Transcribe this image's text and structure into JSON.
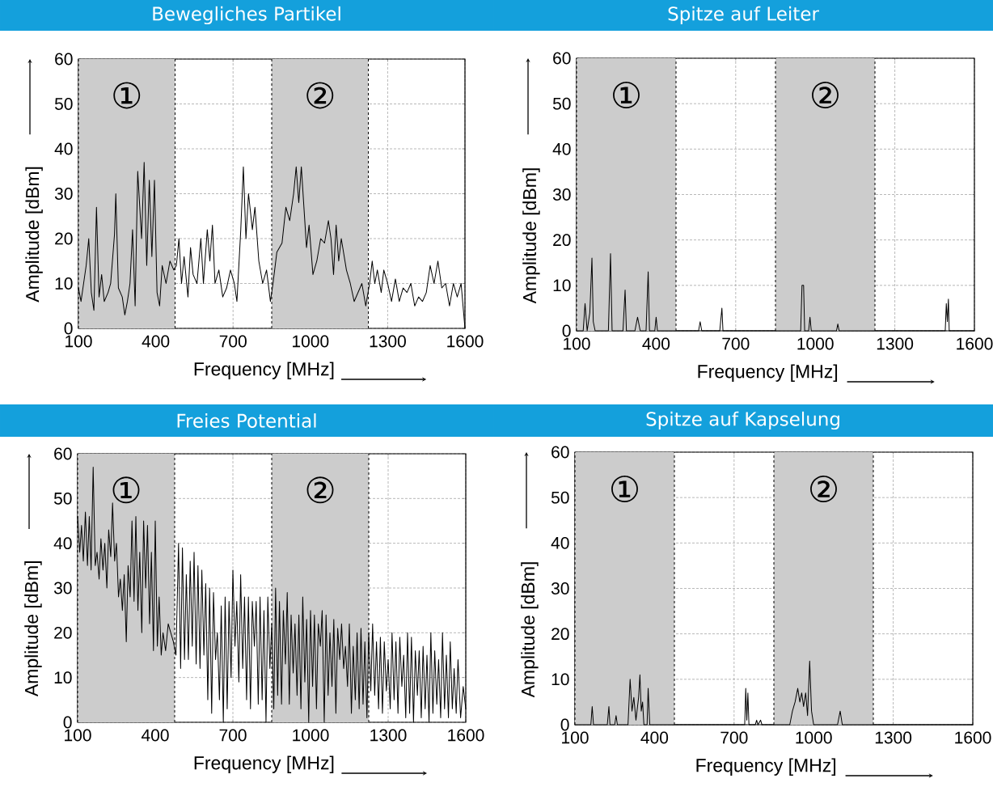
{
  "chart_data": [
    {
      "type": "line",
      "title": "Bewegliches Partikel",
      "xlabel": "Frequency [MHz]",
      "ylabel": "Amplitude [dBm]",
      "xlim": [
        100,
        1600
      ],
      "ylim": [
        0,
        60
      ],
      "xticks": [
        100,
        400,
        700,
        1000,
        1300,
        1600
      ],
      "yticks": [
        0,
        10,
        20,
        30,
        40,
        50,
        60
      ],
      "grid": true,
      "color": "#000000",
      "bands": [
        {
          "axis": "x",
          "from": 100,
          "to": 475,
          "label": "①",
          "color": "#cccccc"
        },
        {
          "axis": "x",
          "from": 850,
          "to": 1225,
          "label": "②",
          "color": "#cccccc"
        }
      ],
      "x": [
        100,
        110,
        120,
        130,
        140,
        150,
        160,
        170,
        180,
        190,
        200,
        215,
        225,
        240,
        245,
        255,
        270,
        280,
        290,
        300,
        310,
        320,
        330,
        345,
        355,
        365,
        375,
        385,
        395,
        405,
        415,
        425,
        440,
        455,
        470,
        480,
        490,
        500,
        510,
        525,
        535,
        545,
        560,
        575,
        585,
        600,
        610,
        620,
        630,
        645,
        660,
        675,
        690,
        705,
        715,
        730,
        740,
        750,
        760,
        775,
        785,
        800,
        815,
        830,
        845,
        855,
        870,
        890,
        905,
        920,
        935,
        945,
        955,
        965,
        975,
        985,
        995,
        1010,
        1025,
        1040,
        1055,
        1070,
        1080,
        1090,
        1100,
        1110,
        1120,
        1140,
        1155,
        1170,
        1185,
        1200,
        1215,
        1230,
        1240,
        1250,
        1260,
        1275,
        1285,
        1300,
        1315,
        1330,
        1345,
        1360,
        1375,
        1390,
        1405,
        1420,
        1435,
        1450,
        1465,
        1480,
        1495,
        1510,
        1525,
        1540,
        1555,
        1570,
        1585,
        1600
      ],
      "values": [
        9,
        6,
        10,
        14,
        20,
        8,
        4,
        27,
        7,
        12,
        6,
        8,
        10,
        21,
        30,
        9,
        7,
        3,
        6,
        10,
        22,
        5,
        35,
        20,
        37,
        14,
        33,
        16,
        33,
        8,
        5,
        14,
        10,
        15,
        13,
        14,
        20,
        10,
        16,
        7,
        18,
        12,
        10,
        20,
        10,
        22,
        15,
        23,
        10,
        13,
        7,
        9,
        13,
        10,
        6,
        22,
        36,
        20,
        30,
        22,
        27,
        15,
        10,
        13,
        6,
        10,
        17,
        19,
        27,
        24,
        30,
        36,
        28,
        36,
        27,
        18,
        23,
        12,
        15,
        20,
        19,
        24,
        20,
        12,
        23,
        15,
        20,
        13,
        10,
        6,
        8,
        10,
        5,
        10,
        15,
        10,
        13,
        8,
        13,
        10,
        6,
        11,
        6,
        9,
        8,
        10,
        5,
        7,
        6,
        8,
        14,
        10,
        15,
        9,
        10,
        5,
        10,
        7,
        10,
        0
      ]
    },
    {
      "type": "line",
      "title": "Spitze auf Leiter",
      "xlabel": "Frequency [MHz]",
      "ylabel": "Amplitude [dBm]",
      "xlim": [
        100,
        1600
      ],
      "ylim": [
        0,
        60
      ],
      "xticks": [
        100,
        400,
        700,
        1000,
        1300,
        1600
      ],
      "yticks": [
        0,
        10,
        20,
        30,
        40,
        50,
        60
      ],
      "grid": true,
      "color": "#000000",
      "bands": [
        {
          "axis": "x",
          "from": 100,
          "to": 475,
          "label": "①",
          "color": "#cccccc"
        },
        {
          "axis": "x",
          "from": 850,
          "to": 1225,
          "label": "②",
          "color": "#cccccc"
        }
      ],
      "x": [
        100,
        125,
        132,
        140,
        150,
        158,
        163,
        170,
        220,
        228,
        234,
        275,
        283,
        288,
        320,
        330,
        340,
        362,
        370,
        375,
        395,
        400,
        405,
        560,
        566,
        572,
        640,
        648,
        652,
        945,
        950,
        956,
        960,
        975,
        980,
        985,
        1080,
        1085,
        1090,
        1490,
        1494,
        1498,
        1502,
        1505,
        1600
      ],
      "values": [
        0,
        0,
        6,
        0,
        4,
        16,
        2,
        0,
        0,
        17,
        0,
        0,
        9,
        0,
        0,
        3,
        0,
        0,
        13,
        0,
        0,
        3,
        0,
        0,
        2,
        0,
        0,
        5,
        0,
        0,
        10,
        10,
        0,
        0,
        3,
        0,
        0,
        1.5,
        0,
        0,
        6,
        2,
        7,
        0,
        0
      ]
    },
    {
      "type": "line",
      "title": "Freies Potential",
      "xlabel": "Frequency [MHz]",
      "ylabel": "Amplitude [dBm]",
      "xlim": [
        100,
        1600
      ],
      "ylim": [
        0,
        60
      ],
      "xticks": [
        100,
        400,
        700,
        1000,
        1300,
        1600
      ],
      "yticks": [
        0,
        10,
        20,
        30,
        40,
        50,
        60
      ],
      "grid": true,
      "color": "#000000",
      "bands": [
        {
          "axis": "x",
          "from": 100,
          "to": 475,
          "label": "①",
          "color": "#cccccc"
        },
        {
          "axis": "x",
          "from": 850,
          "to": 1225,
          "label": "②",
          "color": "#cccccc"
        }
      ],
      "x": [
        100,
        108,
        115,
        122,
        130,
        138,
        145,
        152,
        160,
        168,
        175,
        183,
        190,
        198,
        205,
        213,
        220,
        228,
        235,
        243,
        250,
        258,
        265,
        273,
        280,
        288,
        295,
        303,
        310,
        318,
        325,
        333,
        340,
        348,
        355,
        363,
        370,
        378,
        385,
        393,
        400,
        408,
        415,
        423,
        430,
        440,
        450,
        460,
        470,
        480,
        490,
        498,
        505,
        513,
        520,
        528,
        535,
        543,
        550,
        558,
        565,
        573,
        580,
        588,
        595,
        603,
        610,
        618,
        625,
        633,
        640,
        648,
        655,
        663,
        670,
        678,
        685,
        693,
        700,
        708,
        715,
        723,
        730,
        738,
        745,
        753,
        760,
        768,
        775,
        783,
        790,
        798,
        805,
        813,
        820,
        828,
        835,
        843,
        850,
        858,
        865,
        873,
        880,
        888,
        895,
        903,
        910,
        918,
        925,
        933,
        940,
        948,
        955,
        963,
        970,
        978,
        985,
        993,
        1000,
        1008,
        1015,
        1023,
        1030,
        1038,
        1045,
        1053,
        1060,
        1068,
        1075,
        1083,
        1090,
        1098,
        1105,
        1113,
        1120,
        1128,
        1135,
        1143,
        1150,
        1158,
        1165,
        1173,
        1180,
        1188,
        1195,
        1203,
        1210,
        1218,
        1225,
        1233,
        1240,
        1248,
        1255,
        1263,
        1270,
        1278,
        1285,
        1293,
        1300,
        1308,
        1315,
        1323,
        1330,
        1338,
        1345,
        1353,
        1360,
        1368,
        1375,
        1383,
        1390,
        1398,
        1405,
        1413,
        1420,
        1428,
        1435,
        1443,
        1450,
        1458,
        1465,
        1473,
        1480,
        1488,
        1495,
        1503,
        1510,
        1518,
        1525,
        1533,
        1540,
        1548,
        1555,
        1563,
        1570,
        1580,
        1590,
        1600
      ],
      "values": [
        46,
        38,
        44,
        36,
        47,
        35,
        46,
        34,
        57,
        35,
        38,
        32,
        41,
        34,
        40,
        30,
        43,
        37,
        49,
        36,
        40,
        28,
        32,
        25,
        33,
        18,
        35,
        28,
        45,
        27,
        46,
        25,
        38,
        20,
        45,
        30,
        44,
        22,
        38,
        16,
        45,
        17,
        28,
        15,
        20,
        16,
        22,
        20,
        18,
        15,
        40,
        12,
        39,
        14,
        33,
        14,
        36,
        17,
        38,
        13,
        35,
        12,
        34,
        15,
        31,
        5,
        30,
        2,
        29,
        14,
        20,
        5,
        26,
        0,
        28,
        3,
        27,
        10,
        34,
        17,
        27,
        9,
        33,
        12,
        28,
        5,
        28,
        3,
        27,
        17,
        27,
        4,
        28,
        5,
        25,
        0,
        28,
        12,
        22,
        3,
        30,
        6,
        27,
        4,
        25,
        13,
        29,
        4,
        24,
        11,
        22,
        6,
        24,
        3,
        28,
        9,
        23,
        0,
        25,
        8,
        24,
        3,
        22,
        17,
        25,
        0,
        24,
        6,
        20,
        8,
        23,
        2,
        21,
        14,
        22,
        12,
        17,
        8,
        22,
        2,
        17,
        5,
        20,
        3,
        21,
        4,
        18,
        1,
        20,
        7,
        22,
        6,
        18,
        3,
        19,
        2,
        18,
        7,
        14,
        3,
        20,
        5,
        18,
        2,
        19,
        8,
        15,
        1,
        20,
        2,
        19,
        0,
        16,
        6,
        16,
        1,
        17,
        3,
        15,
        0,
        20,
        2,
        16,
        4,
        14,
        1,
        20,
        3,
        15,
        1,
        18,
        3,
        12,
        2,
        14,
        1,
        8,
        3
      ]
    },
    {
      "type": "line",
      "title": "Spitze auf Kapselung",
      "xlabel": "Frequency [MHz]",
      "ylabel": "Amplitude [dBm]",
      "xlim": [
        100,
        1600
      ],
      "ylim": [
        0,
        60
      ],
      "xticks": [
        100,
        400,
        700,
        1000,
        1300,
        1600
      ],
      "yticks": [
        0,
        10,
        20,
        30,
        40,
        50,
        60
      ],
      "grid": true,
      "color": "#000000",
      "bands": [
        {
          "axis": "x",
          "from": 100,
          "to": 475,
          "label": "①",
          "color": "#cccccc"
        },
        {
          "axis": "x",
          "from": 850,
          "to": 1225,
          "label": "②",
          "color": "#cccccc"
        }
      ],
      "x": [
        100,
        160,
        165,
        170,
        222,
        228,
        232,
        250,
        255,
        260,
        300,
        308,
        315,
        322,
        330,
        340,
        345,
        350,
        355,
        360,
        372,
        376,
        382,
        740,
        744,
        748,
        752,
        756,
        780,
        785,
        790,
        800,
        805,
        910,
        920,
        930,
        940,
        948,
        955,
        962,
        970,
        977,
        985,
        992,
        1000,
        1090,
        1100,
        1108,
        1600
      ],
      "values": [
        0,
        0,
        4,
        0,
        0,
        4,
        0,
        0,
        2,
        0,
        0,
        10,
        3,
        6,
        1,
        6,
        11,
        3,
        5,
        0,
        0,
        8,
        0,
        0,
        8,
        1,
        7,
        0,
        0,
        1,
        0,
        1,
        0,
        0,
        3,
        5,
        8,
        5,
        7,
        4,
        7,
        2,
        14,
        3,
        0,
        0,
        3,
        0,
        0
      ]
    }
  ]
}
